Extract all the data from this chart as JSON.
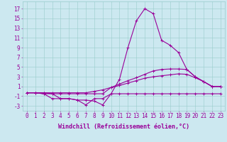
{
  "x": [
    0,
    1,
    2,
    3,
    4,
    5,
    6,
    7,
    8,
    9,
    10,
    11,
    12,
    13,
    14,
    15,
    16,
    17,
    18,
    19,
    20,
    21,
    22,
    23
  ],
  "line_peak": [
    -0.3,
    -0.3,
    -0.5,
    -1.5,
    -1.5,
    -1.5,
    -1.8,
    -2.8,
    -1.5,
    -1.5,
    -0.5,
    2.5,
    9.0,
    14.5,
    17.0,
    16.0,
    10.5,
    9.5,
    8.0,
    4.5,
    3.0,
    2.0,
    1.0,
    1.0
  ],
  "line_mid1": [
    -0.3,
    -0.3,
    -0.3,
    -0.5,
    -0.5,
    -0.5,
    -0.5,
    -0.5,
    -0.5,
    -0.5,
    0.8,
    1.5,
    2.2,
    2.8,
    3.5,
    4.2,
    4.5,
    4.6,
    4.6,
    4.5,
    3.0,
    2.0,
    1.0,
    1.0
  ],
  "line_mid2": [
    -0.3,
    -0.3,
    -0.3,
    -0.3,
    -0.3,
    -0.3,
    -0.3,
    -0.3,
    -0.0,
    0.3,
    0.8,
    1.2,
    1.7,
    2.2,
    2.7,
    3.0,
    3.2,
    3.4,
    3.6,
    3.5,
    2.8,
    2.0,
    1.0,
    1.0
  ],
  "line_flat": [
    -0.3,
    -0.3,
    -0.5,
    -0.5,
    -1.5,
    -1.5,
    -1.8,
    -1.8,
    -2.0,
    -2.8,
    -0.5,
    -0.5,
    -0.5,
    -0.5,
    -0.5,
    -0.5,
    -0.5,
    -0.5,
    -0.5,
    -0.5,
    -0.5,
    -0.5,
    -0.5,
    -0.5
  ],
  "bg_color": "#cce8f0",
  "grid_color": "#99cccc",
  "line_color": "#990099",
  "xlabel": "Windchill (Refroidissement éolien,°C)",
  "yticks": [
    -3,
    -1,
    1,
    3,
    5,
    7,
    9,
    11,
    13,
    15,
    17
  ],
  "xticks": [
    0,
    1,
    2,
    3,
    4,
    5,
    6,
    7,
    8,
    9,
    10,
    11,
    12,
    13,
    14,
    15,
    16,
    17,
    18,
    19,
    20,
    21,
    22,
    23
  ],
  "xlim": [
    -0.5,
    23.5
  ],
  "ylim": [
    -4.0,
    18.5
  ],
  "xlabel_fontsize": 6.0,
  "tick_fontsize": 5.5,
  "marker": "+",
  "markersize": 3,
  "linewidth": 0.8
}
